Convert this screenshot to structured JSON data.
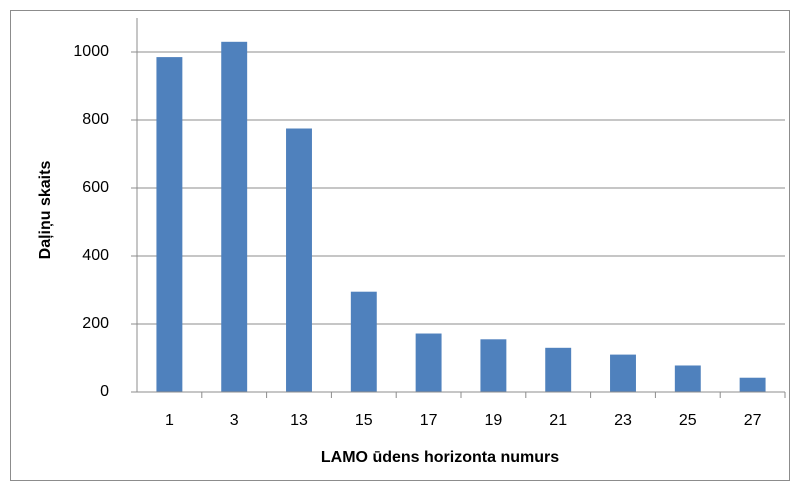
{
  "chart_data": {
    "type": "bar",
    "x_label": "LAMO ūdens horizonta numurs",
    "y_label": "Daļiņu skaits",
    "categories": [
      "1",
      "3",
      "13",
      "15",
      "17",
      "19",
      "21",
      "23",
      "25",
      "27"
    ],
    "values": [
      985,
      1030,
      775,
      295,
      172,
      155,
      130,
      110,
      78,
      42
    ],
    "color": "#4f81bd",
    "ylim": [
      0,
      1100
    ],
    "yticks": [
      0,
      200,
      400,
      600,
      800,
      1000
    ],
    "grid": true
  }
}
